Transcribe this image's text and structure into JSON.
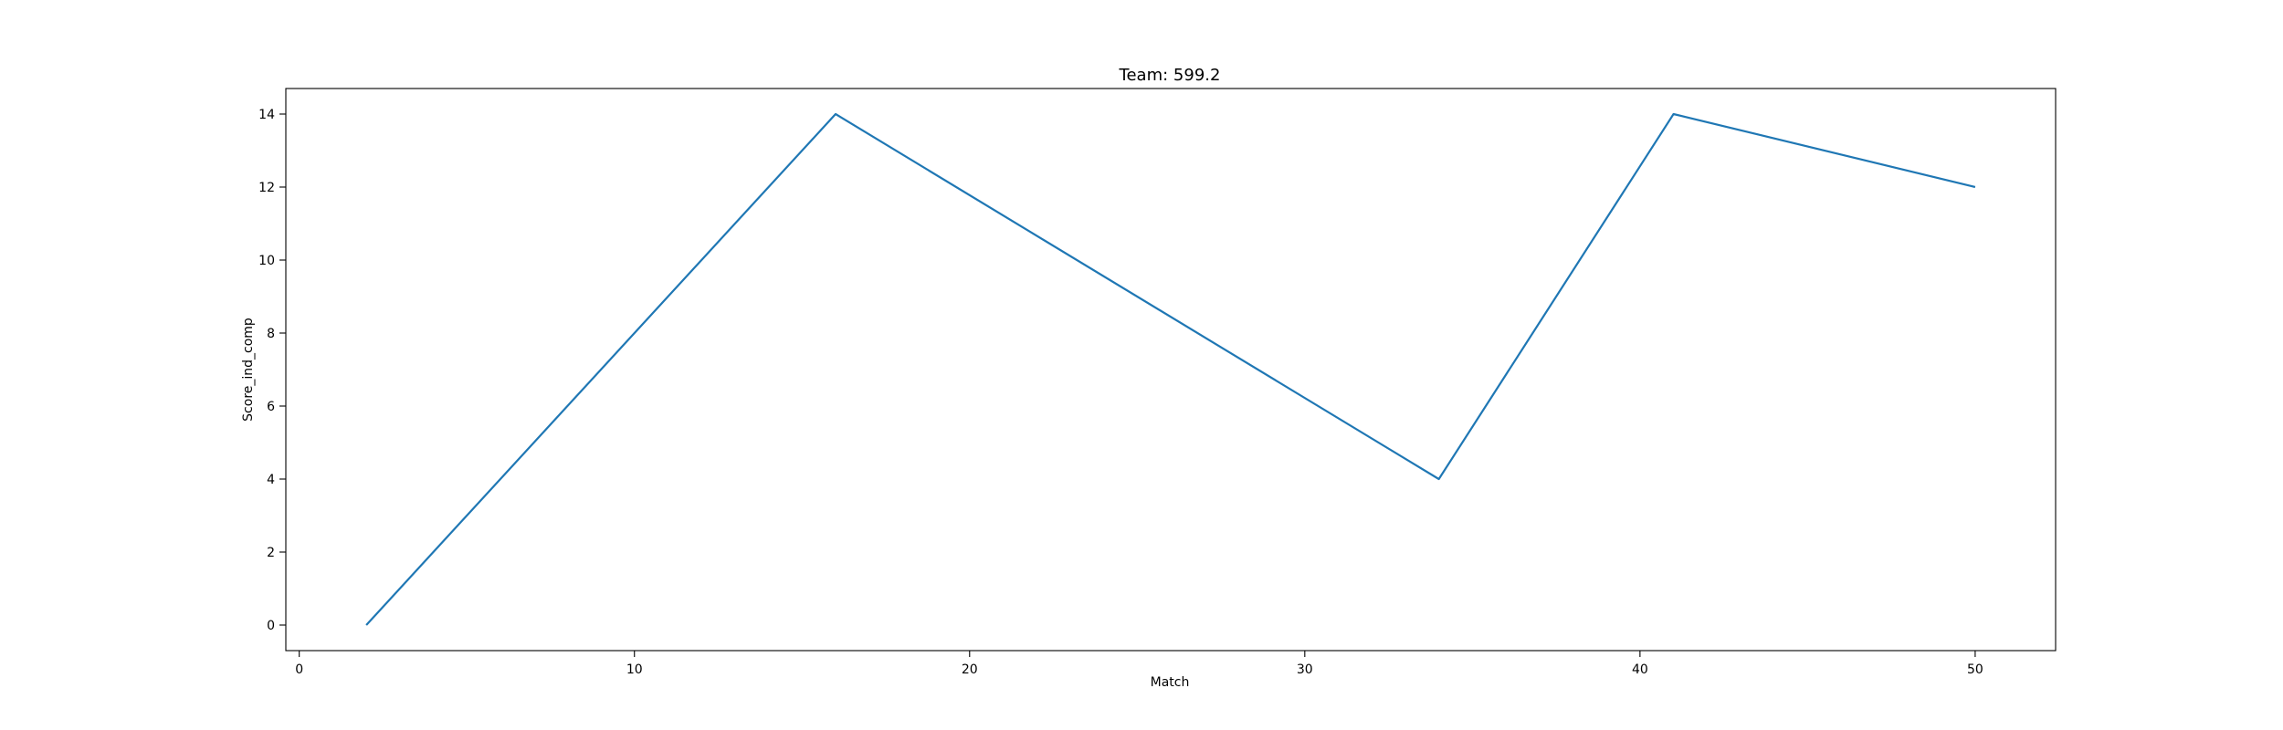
{
  "chart_data": {
    "type": "line",
    "title": "Team: 599.2",
    "xlabel": "Match",
    "ylabel": "Score_ind_comp",
    "xlim": [
      -0.4,
      52.4
    ],
    "ylim": [
      -0.7,
      14.7
    ],
    "xticks": [
      0,
      10,
      20,
      30,
      40,
      50
    ],
    "yticks": [
      0,
      2,
      4,
      6,
      8,
      10,
      12,
      14
    ],
    "grid": false,
    "series": [
      {
        "x": [
          2,
          16,
          34,
          41,
          50
        ],
        "y": [
          0,
          14,
          4,
          14,
          12
        ],
        "color": "#1f77b4"
      }
    ]
  }
}
